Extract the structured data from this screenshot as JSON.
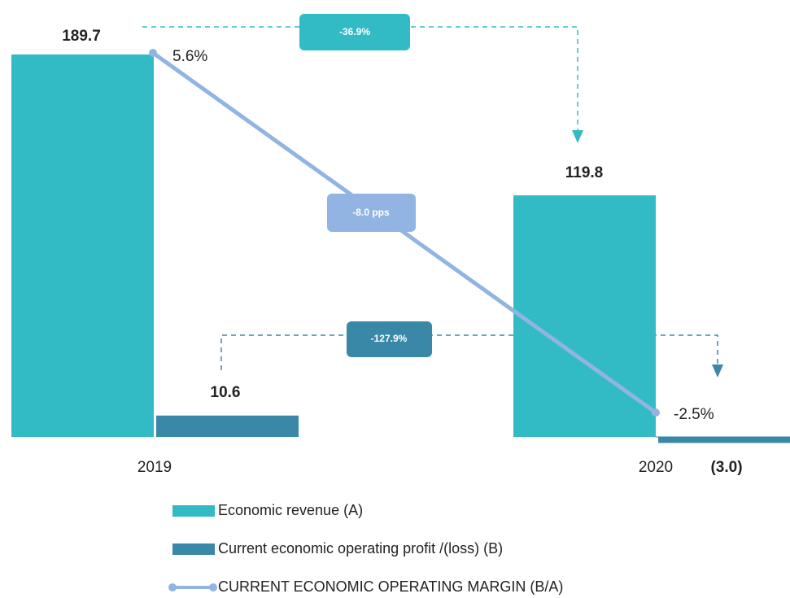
{
  "chart_data": {
    "type": "bar",
    "categories": [
      "2019",
      "2020"
    ],
    "series": [
      {
        "name": "Economic revenue (A)",
        "color": "#33bbc5",
        "values": [
          189.7,
          119.8
        ]
      },
      {
        "name": "Current economic operating profit /(loss) (B)",
        "color": "#3a88a8",
        "values": [
          10.6,
          -3.0
        ],
        "value_labels": [
          "10.6",
          "(3.0)"
        ]
      },
      {
        "name": "CURRENT ECONOMIC OPERATING MARGIN (B/A)",
        "color": "#92b4e3",
        "type": "line",
        "axis": "y2",
        "values": [
          5.6,
          -2.5
        ],
        "value_labels": [
          "5.6%",
          "-2.5%"
        ]
      }
    ],
    "annotations": [
      "-36.9%",
      "-8.0 pps",
      "-127.9%"
    ],
    "ylim": [
      -5,
      200
    ],
    "y2lim": [
      -3,
      6
    ]
  }
}
